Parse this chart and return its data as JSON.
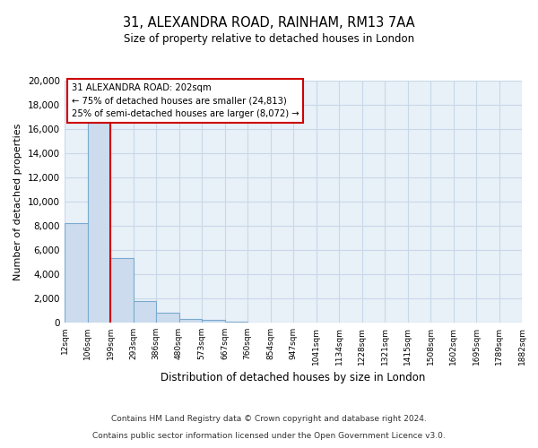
{
  "title": "31, ALEXANDRA ROAD, RAINHAM, RM13 7AA",
  "subtitle": "Size of property relative to detached houses in London",
  "xlabel": "Distribution of detached houses by size in London",
  "ylabel": "Number of detached properties",
  "bin_labels": [
    "12sqm",
    "106sqm",
    "199sqm",
    "293sqm",
    "386sqm",
    "480sqm",
    "573sqm",
    "667sqm",
    "760sqm",
    "854sqm",
    "947sqm",
    "1041sqm",
    "1134sqm",
    "1228sqm",
    "1321sqm",
    "1415sqm",
    "1508sqm",
    "1602sqm",
    "1695sqm",
    "1789sqm",
    "1882sqm"
  ],
  "bar_heights": [
    8200,
    16500,
    5300,
    1800,
    800,
    300,
    220,
    100,
    0,
    0,
    0,
    0,
    0,
    0,
    0,
    0,
    0,
    0,
    0,
    0
  ],
  "bar_color": "#ccdcee",
  "bar_edge_color": "#7aaad0",
  "property_line_color": "#cc0000",
  "annotation_title": "31 ALEXANDRA ROAD: 202sqm",
  "annotation_line1": "← 75% of detached houses are smaller (24,813)",
  "annotation_line2": "25% of semi-detached houses are larger (8,072) →",
  "annotation_box_facecolor": "#ffffff",
  "annotation_box_edgecolor": "#cc0000",
  "ylim": [
    0,
    20000
  ],
  "yticks": [
    0,
    2000,
    4000,
    6000,
    8000,
    10000,
    12000,
    14000,
    16000,
    18000,
    20000
  ],
  "footer_line1": "Contains HM Land Registry data © Crown copyright and database right 2024.",
  "footer_line2": "Contains public sector information licensed under the Open Government Licence v3.0.",
  "grid_color": "#c8d8e8",
  "bg_color": "#e8f0f8"
}
